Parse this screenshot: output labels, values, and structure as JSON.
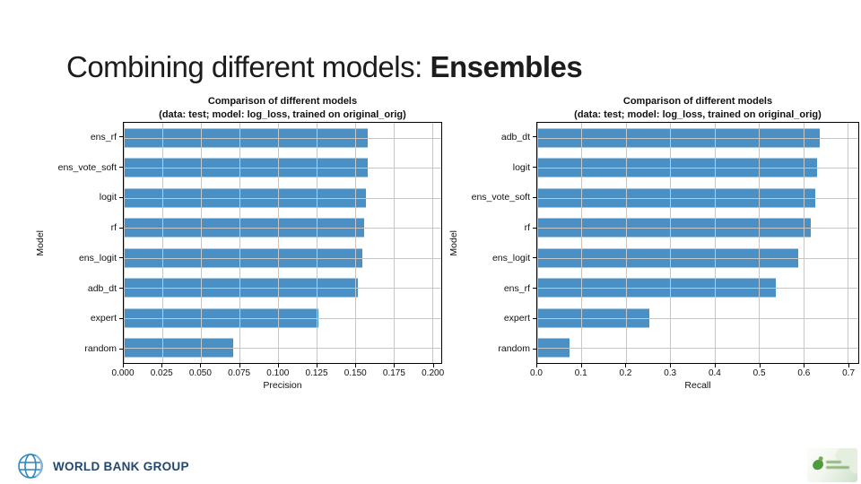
{
  "slide": {
    "title_prefix": "Combining different models: ",
    "title_emphasis": "Ensembles"
  },
  "chart_data": [
    {
      "type": "bar",
      "orientation": "horizontal",
      "title": "Comparison of different models",
      "subtitle": "(data: test; model: log_loss, trained on original_orig)",
      "ylabel": "Model",
      "xlabel": "Precision",
      "categories": [
        "ens_rf",
        "ens_vote_soft",
        "logit",
        "rf",
        "ens_logit",
        "adb_dt",
        "expert",
        "random"
      ],
      "values": [
        0.158,
        0.158,
        0.157,
        0.156,
        0.155,
        0.152,
        0.126,
        0.071
      ],
      "xlim": [
        0,
        0.206
      ],
      "xticks": [
        {
          "label": "0.000",
          "value": 0.0
        },
        {
          "label": "0.025",
          "value": 0.025
        },
        {
          "label": "0.050",
          "value": 0.05
        },
        {
          "label": "0.075",
          "value": 0.075
        },
        {
          "label": "0.100",
          "value": 0.1
        },
        {
          "label": "0.125",
          "value": 0.125
        },
        {
          "label": "0.150",
          "value": 0.15
        },
        {
          "label": "0.175",
          "value": 0.175
        },
        {
          "label": "0.200",
          "value": 0.2
        }
      ],
      "grid": true,
      "legend": "none"
    },
    {
      "type": "bar",
      "orientation": "horizontal",
      "title": "Comparison of different models",
      "subtitle": "(data: test; model: log_loss, trained on original_orig)",
      "ylabel": "Model",
      "xlabel": "Recall",
      "categories": [
        "adb_dt",
        "logit",
        "ens_vote_soft",
        "rf",
        "ens_logit",
        "ens_rf",
        "expert",
        "random"
      ],
      "values": [
        0.638,
        0.63,
        0.627,
        0.617,
        0.588,
        0.537,
        0.253,
        0.072
      ],
      "xlim": [
        0,
        0.724
      ],
      "xticks": [
        {
          "label": "0.0",
          "value": 0.0
        },
        {
          "label": "0.1",
          "value": 0.1
        },
        {
          "label": "0.2",
          "value": 0.2
        },
        {
          "label": "0.3",
          "value": 0.3
        },
        {
          "label": "0.4",
          "value": 0.4
        },
        {
          "label": "0.5",
          "value": 0.5
        },
        {
          "label": "0.6",
          "value": 0.6
        },
        {
          "label": "0.7",
          "value": 0.7
        }
      ],
      "grid": true,
      "legend": "none"
    }
  ],
  "footer": {
    "world_bank_text": "WORLD BANK GROUP"
  },
  "colors": {
    "bar": "#4a90c4",
    "grid": "#c6c6c6",
    "wb_text": "#25476b",
    "wb_globe": "#2e86c1",
    "partner_green": "#4e9a3c"
  }
}
